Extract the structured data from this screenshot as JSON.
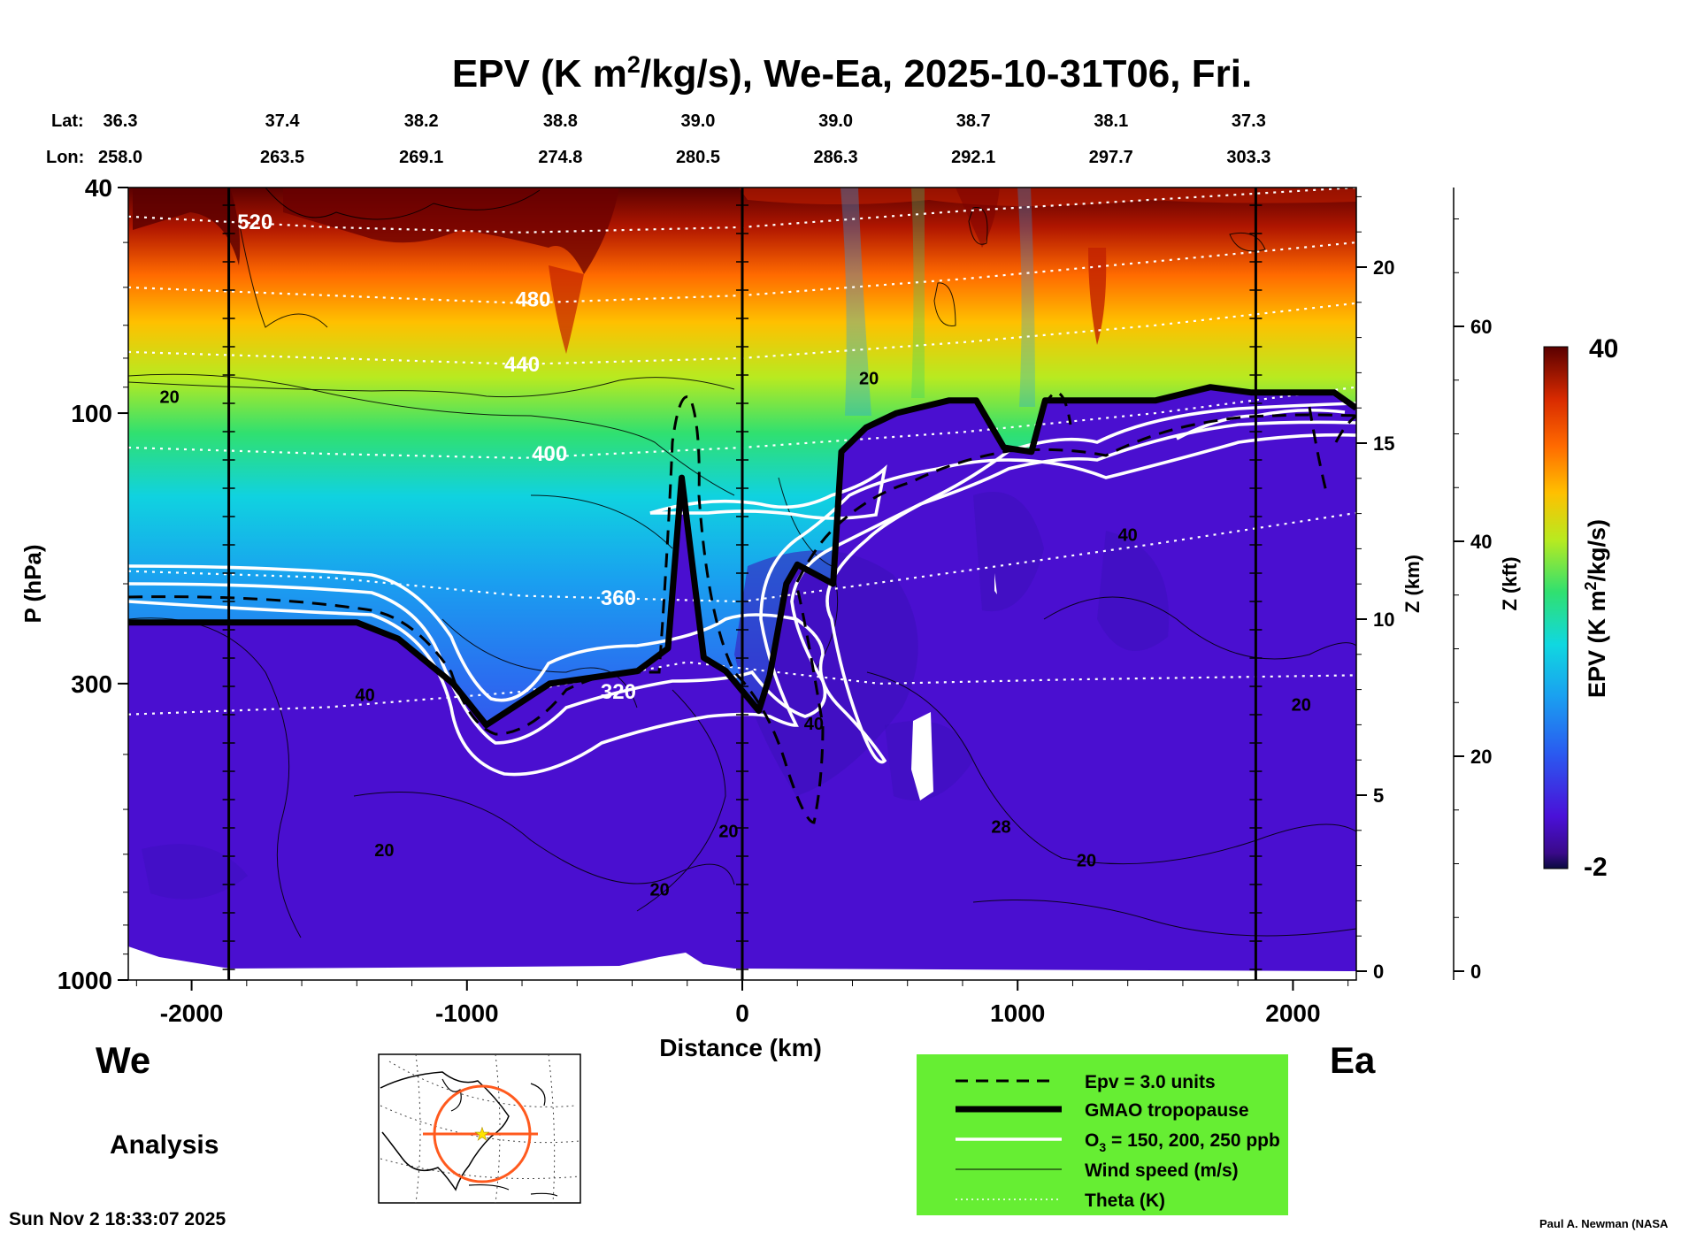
{
  "chart_data": {
    "type": "heatmap",
    "title": "EPV (K m²/kg/s), We-Ea, 2025-10-31T06, Fri.",
    "title_parts": {
      "pre": "EPV (K m",
      "sup": "2",
      "post": "/kg/s), We-Ea, 2025-10-31T06, Fri."
    },
    "xlabel": "Distance (km)",
    "ylabel": "P (hPa)",
    "xlim": [
      -2230,
      2230
    ],
    "x_ticks": [
      -2000,
      -1000,
      0,
      1000,
      2000
    ],
    "x_tick_labels": [
      "-2000",
      "-1000",
      "0",
      "1000",
      "2000"
    ],
    "y_log": true,
    "ylim": [
      1000,
      40
    ],
    "y_ticks": [
      40,
      100,
      300,
      1000
    ],
    "y_tick_labels": [
      "40",
      "100",
      "300",
      "1000"
    ],
    "z_km_axis": {
      "label": "Z (km)",
      "ticks": [
        0,
        5,
        10,
        15,
        20
      ],
      "tick_labels": [
        "0",
        "5",
        "10",
        "15",
        "20"
      ]
    },
    "z_kft_axis": {
      "label": "Z (kft)",
      "ticks": [
        0,
        20,
        40,
        60
      ],
      "tick_labels": [
        "0",
        "20",
        "40",
        "60"
      ]
    },
    "lat_label": "Lat:",
    "lon_label": "Lon:",
    "lat_values": [
      "36.3",
      "37.4",
      "38.2",
      "38.8",
      "39.0",
      "39.0",
      "38.7",
      "38.1",
      "37.3"
    ],
    "lon_values": [
      "258.0",
      "263.5",
      "269.1",
      "274.8",
      "280.5",
      "286.3",
      "292.1",
      "297.7",
      "303.3"
    ],
    "coord_x_km": [
      -2230,
      -1735,
      -1230,
      -725,
      -225,
      275,
      775,
      1275,
      1775
    ],
    "colorbar": {
      "label_pre": "EPV (K m",
      "label_sup": "2",
      "label_post": "/kg/s)",
      "min": -2,
      "max": 40,
      "min_label": "-2",
      "max_label": "40"
    },
    "vertical_lines_km": [
      -1865,
      0,
      1865
    ],
    "tropopause": {
      "x": [
        -2230,
        -1400,
        -1250,
        -1050,
        -930,
        -700,
        -380,
        -270,
        -220,
        -140,
        -60,
        60,
        100,
        160,
        200,
        330,
        360,
        450,
        560,
        750,
        850,
        950,
        1050,
        1100,
        1200,
        1500,
        1700,
        1850,
        2150,
        2230
      ],
      "p": [
        234,
        234,
        250,
        300,
        355,
        300,
        285,
        260,
        130,
        270,
        285,
        335,
        290,
        200,
        185,
        200,
        117,
        106,
        100,
        95,
        95,
        115,
        117,
        95,
        95,
        95,
        90,
        92,
        92,
        98
      ]
    },
    "theta": [
      {
        "label": "320",
        "x": [
          -2230,
          -1500,
          -800,
          -200,
          500,
          1200,
          2230
        ],
        "p": [
          340,
          330,
          310,
          275,
          300,
          295,
          290
        ],
        "lx": -450,
        "lp": 310
      },
      {
        "label": "360",
        "x": [
          -2230,
          -1500,
          -800,
          0,
          800,
          1500,
          2230
        ],
        "p": [
          190,
          195,
          210,
          215,
          190,
          170,
          150
        ],
        "lx": -450,
        "lp": 212
      },
      {
        "label": "400",
        "x": [
          -2230,
          -1500,
          -800,
          0,
          800,
          1500,
          2230
        ],
        "p": [
          115,
          118,
          120,
          115,
          108,
          100,
          90
        ],
        "lx": -700,
        "lp": 118
      },
      {
        "label": "440",
        "x": [
          -2230,
          -1500,
          -800,
          0,
          800,
          1500,
          2230
        ],
        "p": [
          78,
          80,
          82,
          80,
          75,
          70,
          64
        ],
        "lx": -800,
        "lp": 82
      },
      {
        "label": "480",
        "x": [
          -2230,
          -1500,
          -800,
          0,
          800,
          1500,
          2230
        ],
        "p": [
          60,
          62,
          64,
          62,
          58,
          54,
          50
        ],
        "lx": -760,
        "lp": 63
      },
      {
        "label": "520",
        "x": [
          -2230,
          -1500,
          -800,
          0,
          800,
          1500,
          2230
        ],
        "p": [
          45,
          47,
          48,
          47,
          44,
          42,
          40
        ],
        "lx": -1770,
        "lp": 46
      }
    ],
    "wind_labels": [
      {
        "text": "20",
        "x": -2080,
        "p": 96
      },
      {
        "text": "20",
        "x": 460,
        "p": 89
      },
      {
        "text": "40",
        "x": -1370,
        "p": 322
      },
      {
        "text": "20",
        "x": -1300,
        "p": 605
      },
      {
        "text": "20",
        "x": -300,
        "p": 710
      },
      {
        "text": "20",
        "x": -50,
        "p": 560
      },
      {
        "text": "40",
        "x": 260,
        "p": 362
      },
      {
        "text": "28",
        "x": 940,
        "p": 550
      },
      {
        "text": "20",
        "x": 1250,
        "p": 630
      },
      {
        "text": "40",
        "x": 1400,
        "p": 168
      },
      {
        "text": "20",
        "x": 2030,
        "p": 335
      }
    ],
    "legend": [
      {
        "text": "Epv = 3.0 units",
        "style": "dashed"
      },
      {
        "text": "GMAO tropopause",
        "style": "thick"
      },
      {
        "text_pre": "O",
        "text_sub": "3",
        "text_post": " = 150, 200, 250 ppb",
        "style": "white"
      },
      {
        "text": "Wind speed (m/s)",
        "style": "thin"
      },
      {
        "text": "Theta (K)",
        "style": "dotted"
      }
    ]
  },
  "labels": {
    "west": "We",
    "east": "Ea",
    "analysis": "Analysis",
    "timestamp": "Sun Nov  2 18:33:07 2025",
    "credit": "Paul A. Newman (NASA"
  },
  "colors": {
    "legend_bg": "#66ee33",
    "troposphere": "#4a0fd0",
    "map_ring": "#ff5a1e",
    "map_star": "#ffe400"
  }
}
